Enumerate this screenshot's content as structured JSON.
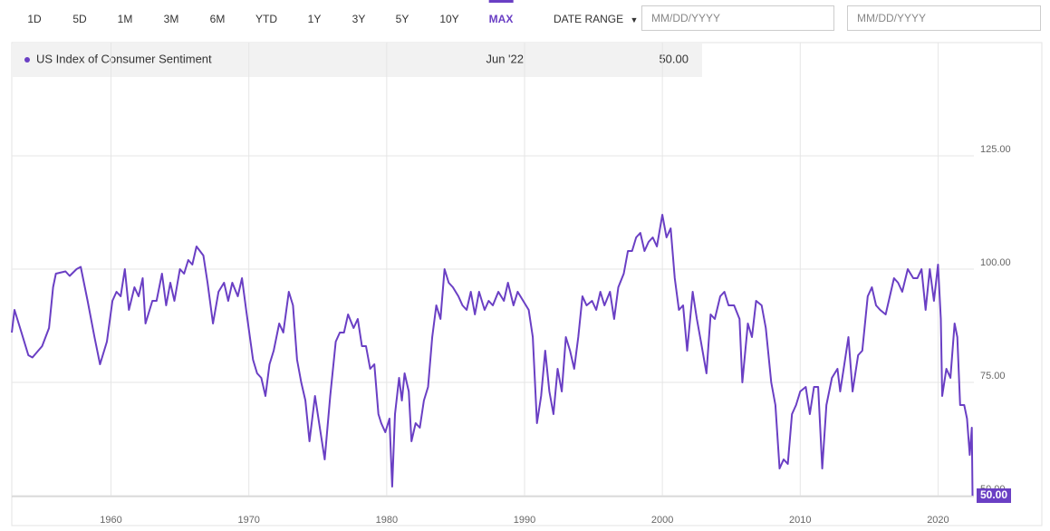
{
  "toolbar": {
    "ranges": [
      "1D",
      "5D",
      "1M",
      "3M",
      "6M",
      "YTD",
      "1Y",
      "3Y",
      "5Y",
      "10Y",
      "MAX"
    ],
    "active": 10,
    "date_range": "DATE RANGE",
    "placeholders": [
      "MM/DD/YYYY",
      "MM/DD/YYYY"
    ]
  },
  "chart_data": {
    "type": "line",
    "hover": {
      "date": "Jun '22",
      "value_label": "50.00"
    },
    "x": [
      1952.8,
      1953.0,
      1953.5,
      1954,
      1954.3,
      1955,
      1955.5,
      1955.8,
      1956,
      1956.7,
      1957,
      1957.5,
      1957.8,
      1958.3,
      1958.8,
      1959.2,
      1959.7,
      1960.1,
      1960.4,
      1960.7,
      1961,
      1961.3,
      1961.7,
      1962,
      1962.3,
      1962.5,
      1963,
      1963.3,
      1963.7,
      1964,
      1964.3,
      1964.6,
      1965,
      1965.3,
      1965.6,
      1965.9,
      1966.2,
      1966.7,
      1967,
      1967.4,
      1967.8,
      1968.2,
      1968.5,
      1968.8,
      1969.2,
      1969.5,
      1969.8,
      1970.3,
      1970.6,
      1970.9,
      1971.2,
      1971.5,
      1971.8,
      1972.2,
      1972.5,
      1972.9,
      1973.2,
      1973.5,
      1973.8,
      1974.1,
      1974.4,
      1974.8,
      1975.2,
      1975.5,
      1975.9,
      1976.3,
      1976.6,
      1976.9,
      1977.2,
      1977.6,
      1977.9,
      1978.2,
      1978.5,
      1978.8,
      1979.1,
      1979.4,
      1979.6,
      1979.9,
      1980.2,
      1980.4,
      1980.6,
      1980.9,
      1981.1,
      1981.3,
      1981.6,
      1981.8,
      1982.1,
      1982.4,
      1982.7,
      1983,
      1983.3,
      1983.6,
      1983.9,
      1984.2,
      1984.5,
      1984.8,
      1985.2,
      1985.5,
      1985.8,
      1986.1,
      1986.4,
      1986.7,
      1987.1,
      1987.4,
      1987.7,
      1988.1,
      1988.5,
      1988.8,
      1989.2,
      1989.5,
      1989.9,
      1990.3,
      1990.6,
      1990.9,
      1991.2,
      1991.5,
      1991.8,
      1992.1,
      1992.4,
      1992.7,
      1993,
      1993.3,
      1993.6,
      1993.9,
      1994.2,
      1994.5,
      1994.9,
      1995.2,
      1995.5,
      1995.8,
      1996.2,
      1996.5,
      1996.8,
      1997.2,
      1997.5,
      1997.8,
      1998.1,
      1998.4,
      1998.7,
      1999,
      1999.3,
      1999.6,
      2000,
      2000.3,
      2000.6,
      2000.9,
      2001.2,
      2001.5,
      2001.8,
      2002.2,
      2002.5,
      2002.8,
      2003.2,
      2003.5,
      2003.8,
      2004.2,
      2004.5,
      2004.8,
      2005.2,
      2005.6,
      2005.8,
      2006.2,
      2006.5,
      2006.8,
      2007.2,
      2007.5,
      2007.9,
      2008.2,
      2008.5,
      2008.8,
      2009.1,
      2009.4,
      2009.7,
      2010,
      2010.4,
      2010.7,
      2011,
      2011.3,
      2011.6,
      2011.9,
      2012.3,
      2012.7,
      2012.9,
      2013.2,
      2013.5,
      2013.8,
      2014.2,
      2014.5,
      2014.9,
      2015.2,
      2015.5,
      2015.8,
      2016.2,
      2016.5,
      2016.8,
      2017.1,
      2017.4,
      2017.8,
      2018.2,
      2018.5,
      2018.8,
      2019.1,
      2019.4,
      2019.7,
      2020,
      2020.2,
      2020.3,
      2020.6,
      2020.9,
      2021.2,
      2021.4,
      2021.6,
      2021.9,
      2022.1,
      2022.3,
      2022.45,
      2022.5
    ],
    "series": [
      {
        "name": "US Index of Consumer Sentiment",
        "color": "#6a3fc4",
        "values": [
          86,
          91,
          86,
          81,
          80.5,
          83,
          87,
          96,
          99,
          99.5,
          98.5,
          100,
          100.5,
          93,
          85,
          79,
          84,
          93,
          95,
          94,
          100,
          91,
          96,
          94,
          98,
          88,
          93,
          93,
          99,
          92,
          97,
          93,
          100,
          99,
          102,
          101,
          105,
          103,
          97,
          88,
          95,
          97,
          93,
          97,
          94,
          98,
          91,
          80,
          77,
          76,
          72,
          79,
          82,
          88,
          86,
          95,
          92,
          80,
          75,
          71,
          62,
          72,
          64,
          58,
          72,
          84,
          86,
          86,
          90,
          87,
          89,
          83,
          83,
          78,
          79,
          68,
          66,
          64,
          67,
          52,
          68,
          76,
          71,
          77,
          73,
          62,
          66,
          65,
          71,
          74,
          85,
          92,
          89,
          100,
          97,
          96,
          94,
          92,
          91,
          95,
          90,
          95,
          91,
          93,
          92,
          95,
          93,
          97,
          92,
          95,
          93,
          91,
          85,
          66,
          72,
          82,
          73,
          68,
          78,
          73,
          85,
          82,
          78,
          85,
          94,
          92,
          93,
          91,
          95,
          92,
          95,
          89,
          96,
          99,
          104,
          104,
          107,
          108,
          104,
          106,
          107,
          105,
          112,
          107,
          109,
          98,
          91,
          92,
          82,
          95,
          89,
          84,
          77,
          90,
          89,
          94,
          95,
          92,
          92,
          89,
          75,
          88,
          85,
          93,
          92,
          87,
          75,
          70,
          56,
          58,
          57,
          68,
          70,
          73,
          74,
          68,
          74,
          74,
          56,
          70,
          76,
          78,
          73,
          79,
          85,
          73,
          81,
          82,
          94,
          96,
          92,
          91,
          90,
          94,
          98,
          97,
          95,
          100,
          98,
          98,
          100,
          91,
          100,
          93,
          101,
          89,
          72,
          78,
          76,
          88,
          85,
          70,
          70,
          67,
          59,
          65,
          50
        ]
      }
    ],
    "xlim": [
      1952.8,
      2022.6
    ],
    "xticks": [
      1960,
      1970,
      1980,
      1990,
      2000,
      2010,
      2020
    ],
    "ylim": [
      50,
      150
    ],
    "yticks": [
      {
        "value": 50,
        "label": "50.00"
      },
      {
        "value": 75,
        "label": "75.00"
      },
      {
        "value": 100,
        "label": "100.00"
      },
      {
        "value": 125,
        "label": "125.00"
      }
    ],
    "grid": true
  }
}
